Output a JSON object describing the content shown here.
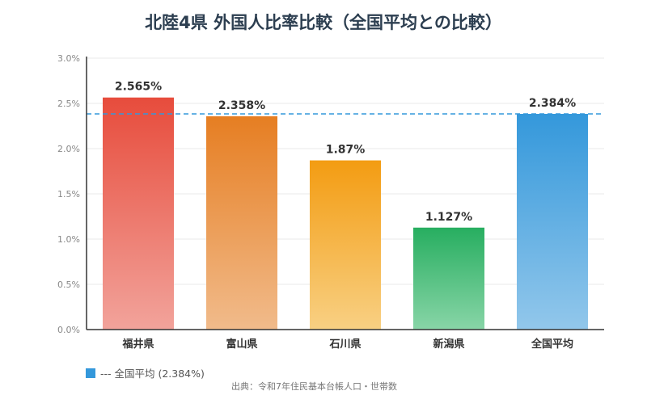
{
  "chart_data": {
    "type": "bar",
    "title": "北陸4県 外国人比率比較（全国平均との比較）",
    "categories": [
      "福井県",
      "富山県",
      "石川県",
      "新潟県",
      "全国平均"
    ],
    "values": [
      2.565,
      2.358,
      1.87,
      1.127,
      2.384
    ],
    "data_labels": [
      "2.565%",
      "2.358%",
      "1.87%",
      "1.127%",
      "2.384%"
    ],
    "colors": [
      [
        "#e74c3c",
        "#f2a39b"
      ],
      [
        "#e67e22",
        "#f1bb8b"
      ],
      [
        "#f39c12",
        "#f8d083"
      ],
      [
        "#27ae60",
        "#88d5a7"
      ],
      [
        "#3498db",
        "#92c7eb"
      ]
    ],
    "ylim": [
      0,
      3.0
    ],
    "yticks": [
      0,
      0.5,
      1.0,
      1.5,
      2.0,
      2.5,
      3.0
    ],
    "ytick_labels": [
      "0.0%",
      "0.5%",
      "1.0%",
      "1.5%",
      "2.0%",
      "2.5%",
      "3.0%"
    ],
    "reference_line": {
      "value": 2.384,
      "color": "#3498db",
      "style": "dashed"
    },
    "grid": true,
    "legend": {
      "position": "bottom-left",
      "label": "--- 全国平均 (2.384%)"
    },
    "source": "出典：令和7年住民基本台帳人口・世帯数"
  }
}
